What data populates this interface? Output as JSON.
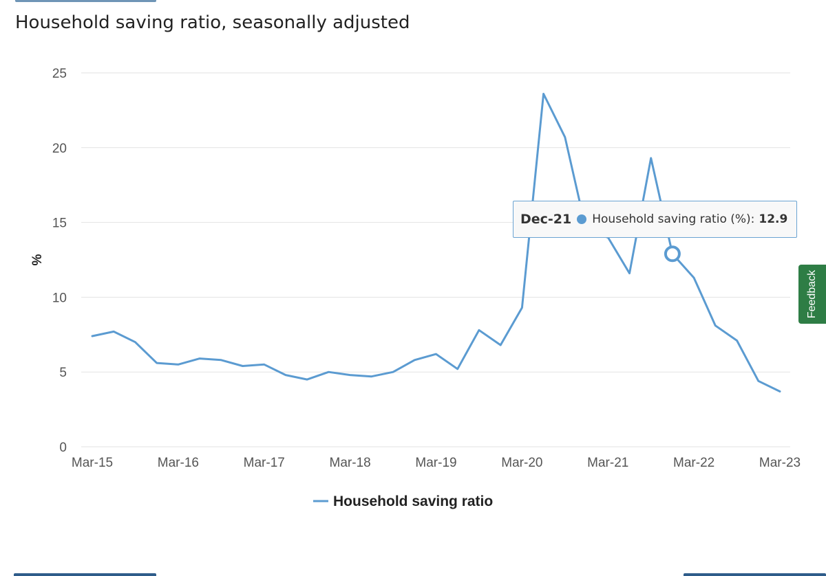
{
  "title": "Household saving ratio, seasonally adjusted",
  "tooltip": {
    "date": "Dec-21",
    "series_label": "Household saving ratio (%):",
    "value": "12.9"
  },
  "feedback_label": "Feedback",
  "colors": {
    "series": "#5b9bd1",
    "grid": "#e2e2e2",
    "feedback": "#2e7d45",
    "tooltip_border": "#6aa3d2"
  },
  "chart_data": {
    "type": "line",
    "title": "Household saving ratio, seasonally adjusted",
    "xlabel": "",
    "ylabel": "%",
    "ylim": [
      0,
      25
    ],
    "yticks": [
      0,
      5,
      10,
      15,
      20,
      25
    ],
    "x_ticks": [
      "Mar-15",
      "Mar-16",
      "Mar-17",
      "Mar-18",
      "Mar-19",
      "Mar-20",
      "Mar-21",
      "Mar-22",
      "Mar-23"
    ],
    "grid": true,
    "legend_position": "bottom-center",
    "x": [
      "Mar-15",
      "Jun-15",
      "Sep-15",
      "Dec-15",
      "Mar-16",
      "Jun-16",
      "Sep-16",
      "Dec-16",
      "Mar-17",
      "Jun-17",
      "Sep-17",
      "Dec-17",
      "Mar-18",
      "Jun-18",
      "Sep-18",
      "Dec-18",
      "Mar-19",
      "Jun-19",
      "Sep-19",
      "Dec-19",
      "Mar-20",
      "Jun-20",
      "Sep-20",
      "Dec-20",
      "Mar-21",
      "Jun-21",
      "Sep-21",
      "Dec-21",
      "Mar-22",
      "Jun-22",
      "Sep-22",
      "Dec-22",
      "Mar-23"
    ],
    "series": [
      {
        "name": "Household saving ratio",
        "values": [
          7.4,
          7.7,
          7.0,
          5.6,
          5.5,
          5.9,
          5.8,
          5.4,
          5.5,
          4.8,
          4.5,
          5.0,
          4.8,
          4.7,
          5.0,
          5.8,
          6.2,
          5.2,
          7.8,
          6.8,
          9.3,
          23.6,
          20.7,
          14.4,
          14.0,
          11.6,
          19.3,
          12.9,
          11.3,
          8.1,
          7.1,
          4.4,
          3.7
        ]
      }
    ]
  }
}
